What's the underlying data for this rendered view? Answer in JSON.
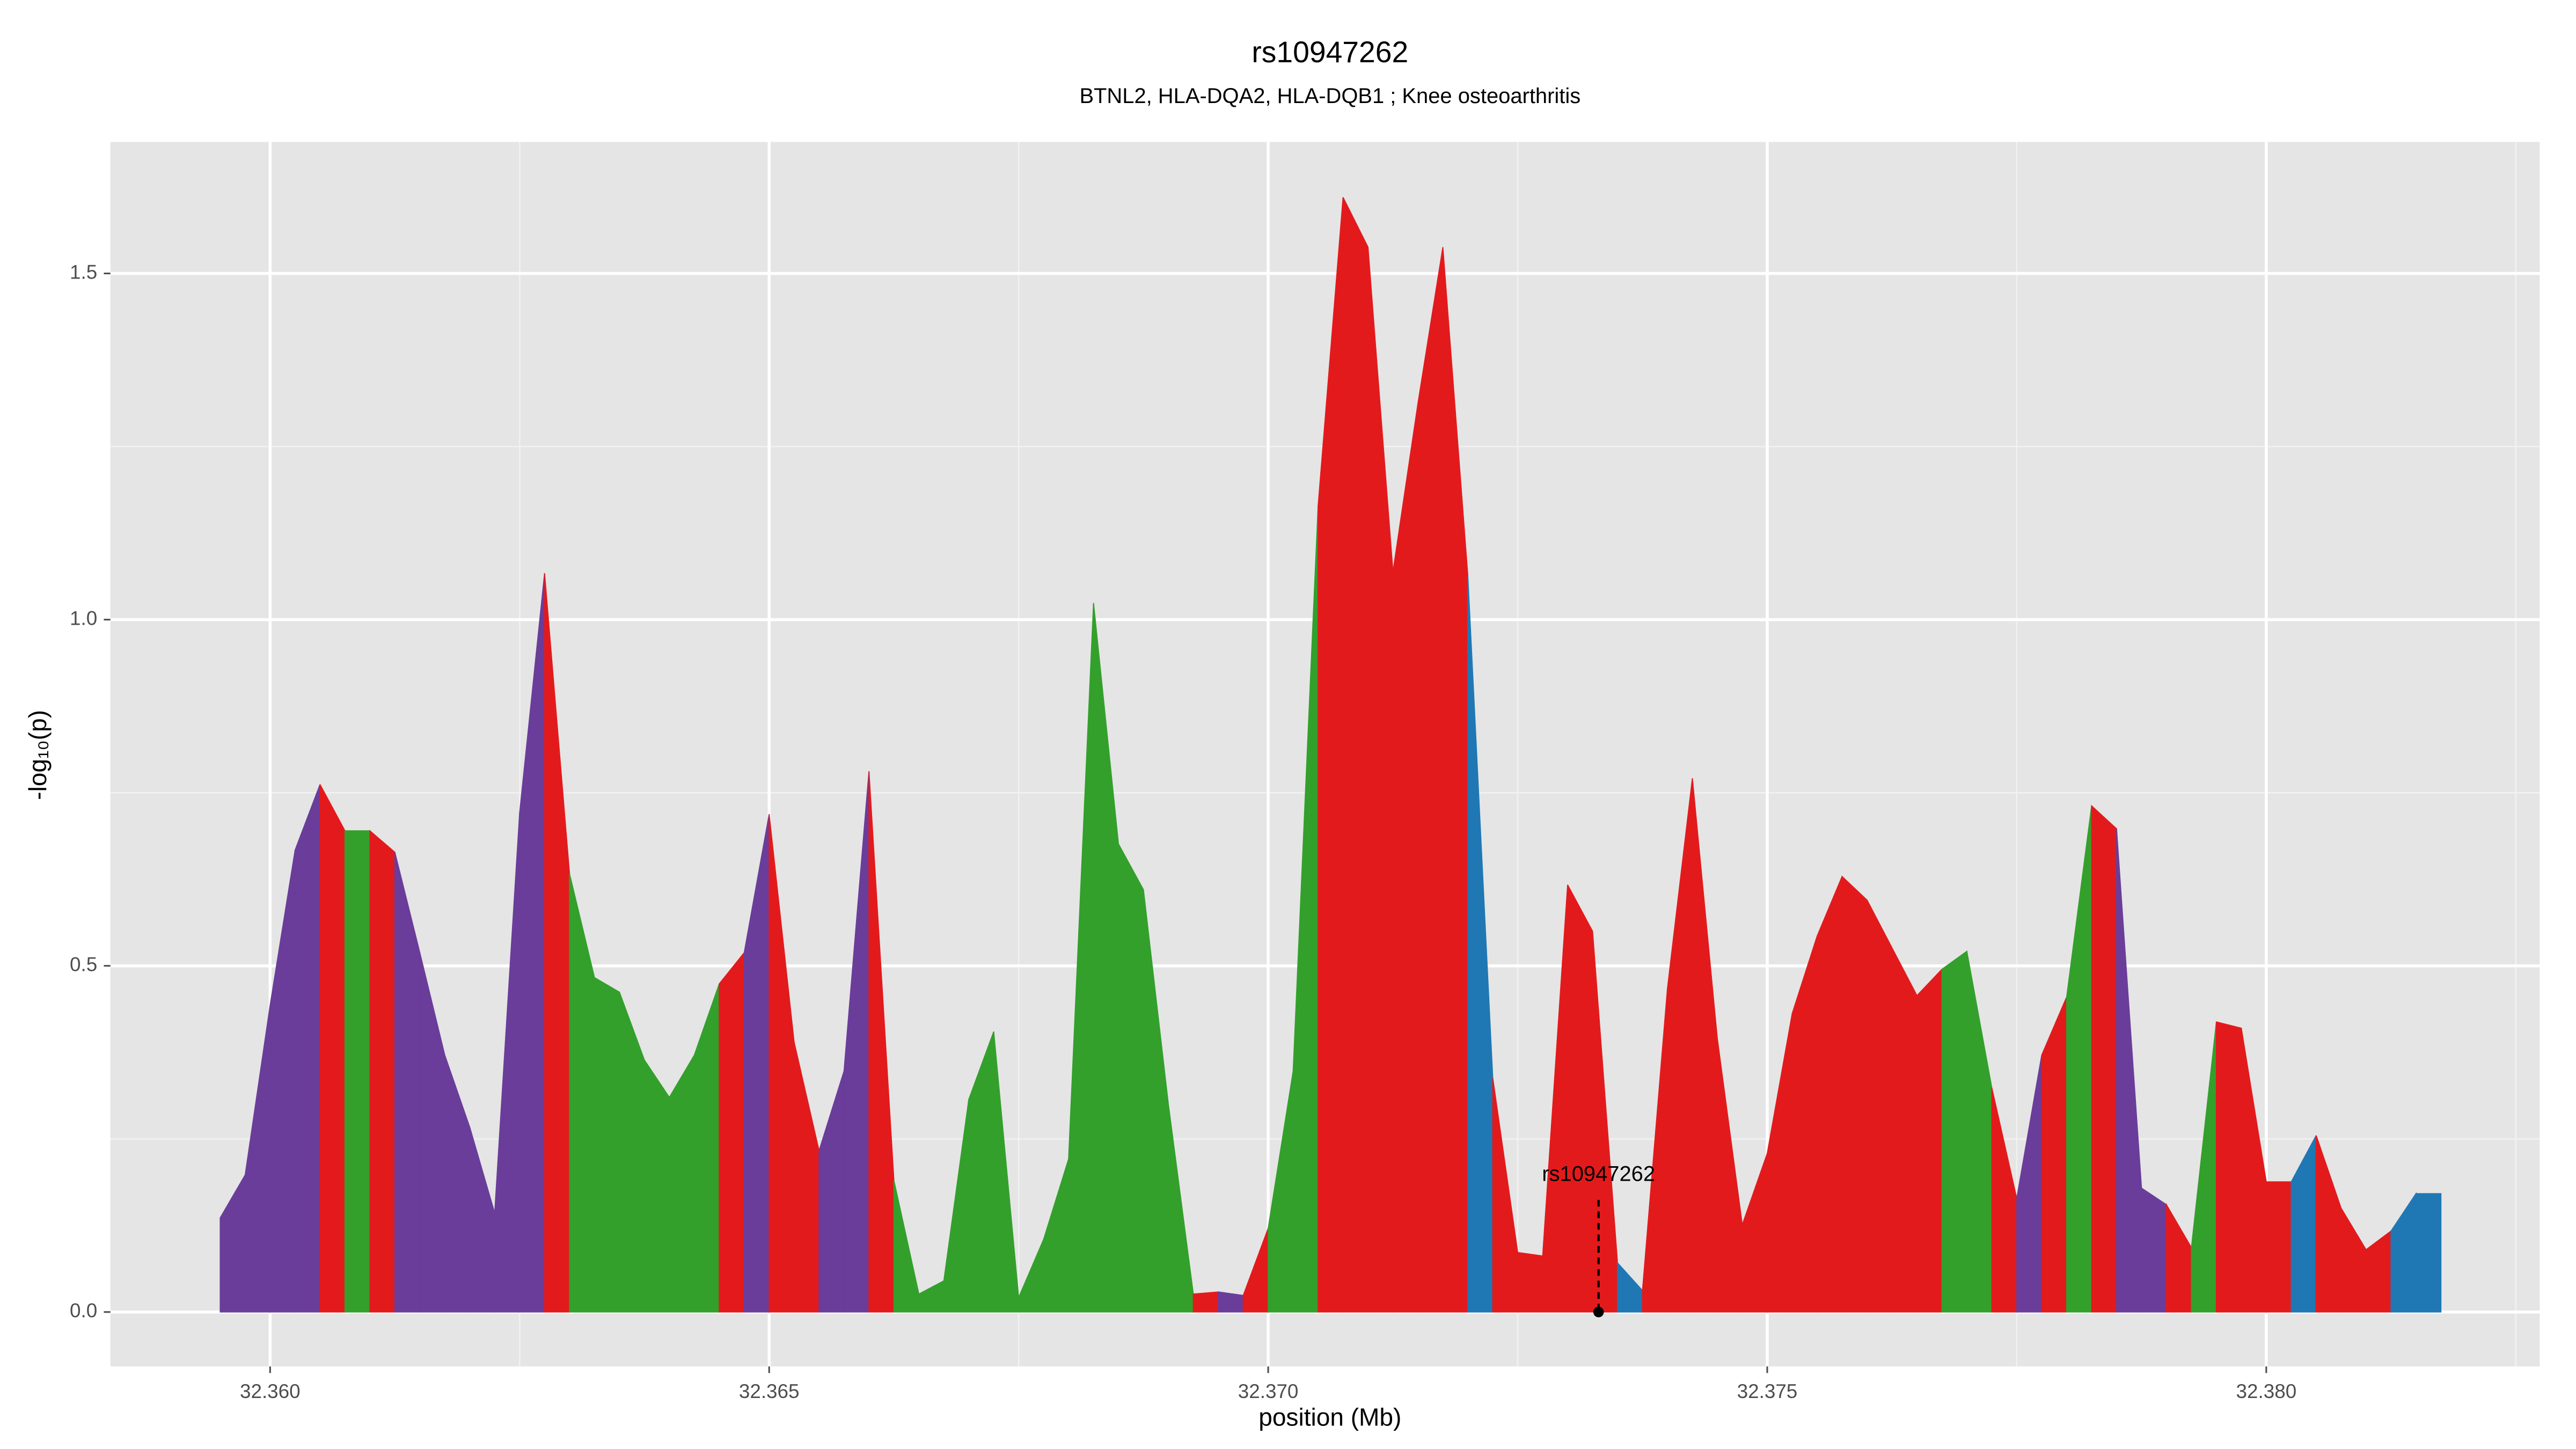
{
  "chart_data": {
    "type": "area",
    "title": "rs10947262",
    "subtitle": "BTNL2, HLA-DQA2, HLA-DQB1 ; Knee osteoarthritis",
    "xlabel": "position (Mb)",
    "ylabel": "-log₁₀(p)",
    "x": [
      32.3595,
      32.35975,
      32.36,
      32.36025,
      32.3605,
      32.36075,
      32.361,
      32.36125,
      32.3615,
      32.36175,
      32.362,
      32.36225,
      32.3625,
      32.36275,
      32.363,
      32.36325,
      32.3635,
      32.36375,
      32.364,
      32.36425,
      32.3645,
      32.36475,
      32.365,
      32.36525,
      32.3655,
      32.36575,
      32.366,
      32.36625,
      32.3665,
      32.36675,
      32.367,
      32.36725,
      32.3675,
      32.36775,
      32.368,
      32.36825,
      32.3685,
      32.36875,
      32.369,
      32.36925,
      32.3695,
      32.36975,
      32.37,
      32.37025,
      32.3705,
      32.37075,
      32.371,
      32.37125,
      32.3715,
      32.37175,
      32.372,
      32.37225,
      32.3725,
      32.37275,
      32.373,
      32.37325,
      32.3735,
      32.37375,
      32.374,
      32.37425,
      32.3745,
      32.37475,
      32.375,
      32.37525,
      32.3755,
      32.37575,
      32.376,
      32.37625,
      32.3765,
      32.37675,
      32.377,
      32.37725,
      32.3775,
      32.37775,
      32.378,
      32.37825,
      32.3785,
      32.37875,
      32.379,
      32.37925,
      32.3795,
      32.37975,
      32.38,
      32.38025,
      32.3805,
      32.38075,
      32.381,
      32.38125,
      32.3815,
      32.38175
    ],
    "values": [
      0.136,
      0.198,
      0.443,
      0.667,
      0.762,
      0.695,
      0.695,
      0.664,
      0.519,
      0.371,
      0.267,
      0.143,
      0.721,
      1.067,
      0.633,
      0.483,
      0.462,
      0.364,
      0.31,
      0.371,
      0.474,
      0.519,
      0.719,
      0.39,
      0.233,
      0.348,
      0.781,
      0.19,
      0.026,
      0.045,
      0.307,
      0.405,
      0.021,
      0.105,
      0.221,
      1.024,
      0.676,
      0.61,
      0.3,
      0.026,
      0.029,
      0.024,
      0.121,
      0.348,
      1.164,
      1.61,
      1.538,
      1.069,
      1.312,
      1.538,
      1.064,
      0.338,
      0.086,
      0.081,
      0.617,
      0.55,
      0.071,
      0.031,
      0.467,
      0.771,
      0.395,
      0.126,
      0.229,
      0.431,
      0.543,
      0.629,
      0.595,
      0.526,
      0.457,
      0.495,
      0.521,
      0.324,
      0.164,
      0.371,
      0.455,
      0.731,
      0.698,
      0.179,
      0.155,
      0.093,
      0.419,
      0.41,
      0.188,
      0.188,
      0.255,
      0.15,
      0.09,
      0.117,
      0.171,
      0.171
    ],
    "point_colors": [
      "#6a3d9a",
      "#6a3d9a",
      "#6a3d9a",
      "#6a3d9a",
      "#e31a1c",
      "#33a02c",
      "#e31a1c",
      "#6a3d9a",
      "#6a3d9a",
      "#6a3d9a",
      "#6a3d9a",
      "#6a3d9a",
      "#6a3d9a",
      "#e31a1c",
      "#33a02c",
      "#33a02c",
      "#33a02c",
      "#33a02c",
      "#33a02c",
      "#33a02c",
      "#e31a1c",
      "#6a3d9a",
      "#e31a1c",
      "#e31a1c",
      "#6a3d9a",
      "#6a3d9a",
      "#e31a1c",
      "#33a02c",
      "#33a02c",
      "#33a02c",
      "#33a02c",
      "#33a02c",
      "#33a02c",
      "#33a02c",
      "#33a02c",
      "#33a02c",
      "#33a02c",
      "#33a02c",
      "#33a02c",
      "#e31a1c",
      "#6a3d9a",
      "#e31a1c",
      "#33a02c",
      "#33a02c",
      "#e31a1c",
      "#e31a1c",
      "#e31a1c",
      "#e31a1c",
      "#e31a1c",
      "#e31a1c",
      "#1f78b4",
      "#e31a1c",
      "#e31a1c",
      "#e31a1c",
      "#e31a1c",
      "#e31a1c",
      "#1f78b4",
      "#e31a1c",
      "#e31a1c",
      "#e31a1c",
      "#e31a1c",
      "#e31a1c",
      "#e31a1c",
      "#e31a1c",
      "#e31a1c",
      "#e31a1c",
      "#e31a1c",
      "#e31a1c",
      "#e31a1c",
      "#33a02c",
      "#33a02c",
      "#e31a1c",
      "#6a3d9a",
      "#e31a1c",
      "#33a02c",
      "#e31a1c",
      "#6a3d9a",
      "#6a3d9a",
      "#e31a1c",
      "#33a02c",
      "#e31a1c",
      "#e31a1c",
      "#e31a1c",
      "#1f78b4",
      "#e31a1c",
      "#e31a1c",
      "#e31a1c",
      "#1f78b4",
      "#1f78b4",
      "#1f78b4"
    ],
    "annotation": {
      "text": "rs10947262",
      "x": 32.37331,
      "y": 0
    },
    "xlim": [
      32.3584,
      32.38274
    ],
    "ylim": [
      -0.0786,
      1.69
    ],
    "xticks": [
      {
        "value": 32.36,
        "label": "32.360"
      },
      {
        "value": 32.365,
        "label": "32.365"
      },
      {
        "value": 32.37,
        "label": "32.370"
      },
      {
        "value": 32.375,
        "label": "32.375"
      },
      {
        "value": 32.38,
        "label": "32.380"
      }
    ],
    "yticks": [
      {
        "value": 0,
        "label": "0.0"
      },
      0.5,
      {
        "value": 1,
        "label": "1.0"
      },
      1.5
    ],
    "grid": true,
    "panel_color": "#e5e5e5"
  }
}
